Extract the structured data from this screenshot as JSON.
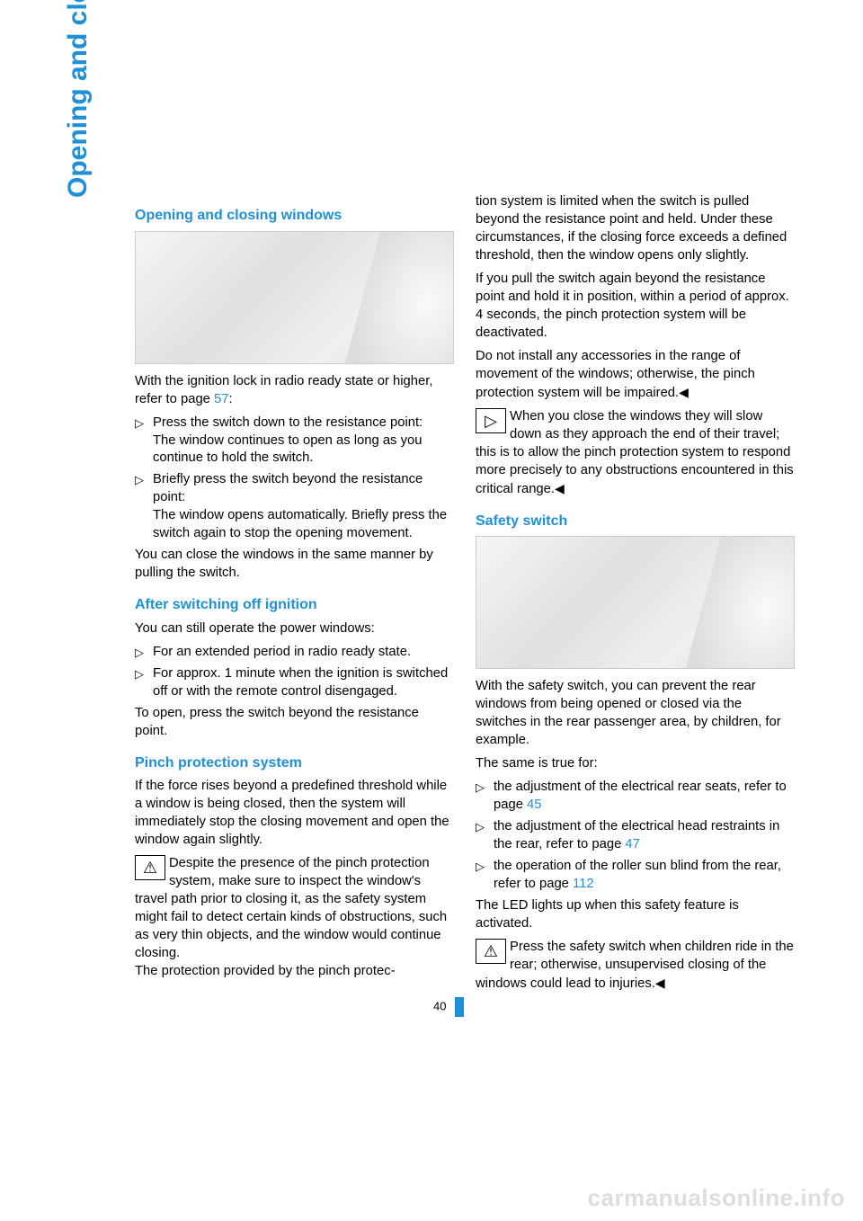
{
  "side_tab": "Opening and closing",
  "page_number": "40",
  "watermark": "carmanualsonline.info",
  "colors": {
    "accent": "#1e90d8",
    "body_text": "#000000",
    "watermark": "#dddddd",
    "background": "#ffffff"
  },
  "typography": {
    "body_fontsize_pt": 11,
    "heading_fontsize_pt": 12,
    "side_tab_fontsize_pt": 22,
    "font_family": "Arial, Helvetica, sans-serif"
  },
  "left_column": {
    "h1": "Opening and closing windows",
    "p_intro_a": "With the ignition lock in radio ready state or higher, refer to page ",
    "p_intro_link": "57",
    "p_intro_b": ":",
    "li1_a": "Press the switch down to the resistance point:",
    "li1_b": "The window continues to open as long as you continue to hold the switch.",
    "li2_a": "Briefly press the switch beyond the resistance point:",
    "li2_b": "The window opens automatically. Briefly press the switch again to stop the opening movement.",
    "p_close": "You can close the windows in the same manner by pulling the switch.",
    "h2": "After switching off ignition",
    "p_after": "You can still operate the power windows:",
    "li3": "For an extended period in radio ready state.",
    "li4": "For approx. 1 minute when the ignition is switched off or with the remote control disengaged.",
    "p_open": "To open, press the switch beyond the resistance point.",
    "h3": "Pinch protection system",
    "p_pinch1": "If the force rises beyond a predefined threshold while a window is being closed, then the system will immediately stop the closing movement and open the window again slightly.",
    "p_pinch2": "Despite the presence of the pinch protection system, make sure to inspect the window's travel path prior to closing it, as the safety system might fail to detect certain kinds of obstructions, such as very thin objects, and the window would continue closing.",
    "p_pinch3": "The protection provided by the pinch protec-"
  },
  "right_column": {
    "p_cont1": "tion system is limited when the switch is pulled beyond the resistance point and held. Under these circumstances, if the closing force exceeds a defined threshold, then the window opens only slightly.",
    "p_cont2": "If you pull the switch again beyond the resistance point and hold it in position, within a period of approx. 4 seconds, the pinch protection system will be deactivated.",
    "p_cont3": "Do not install any accessories in the range of movement of the windows; otherwise, the pinch protection system will be impaired.",
    "p_note": "When you close the windows they will slow down as they approach the end of their travel; this is to allow the pinch protection system to respond more precisely to any obstructions encountered in this critical range.",
    "h4": "Safety switch",
    "p_safety1": "With the safety switch, you can prevent the rear windows from being opened or closed via the switches in the rear passenger area, by children, for example.",
    "p_safety2": "The same is true for:",
    "li5_a": "the adjustment of the electrical rear seats, refer to page ",
    "li5_link": "45",
    "li6_a": "the adjustment of the electrical head restraints in the rear, refer to page ",
    "li6_link": "47",
    "li7_a": "the operation of the roller sun blind from the rear, refer to page ",
    "li7_link": "112",
    "p_led": "The LED lights up when this safety feature is activated.",
    "p_warn": "Press the safety switch when children ride in the rear; otherwise, unsupervised closing of the windows could lead to injuries."
  }
}
